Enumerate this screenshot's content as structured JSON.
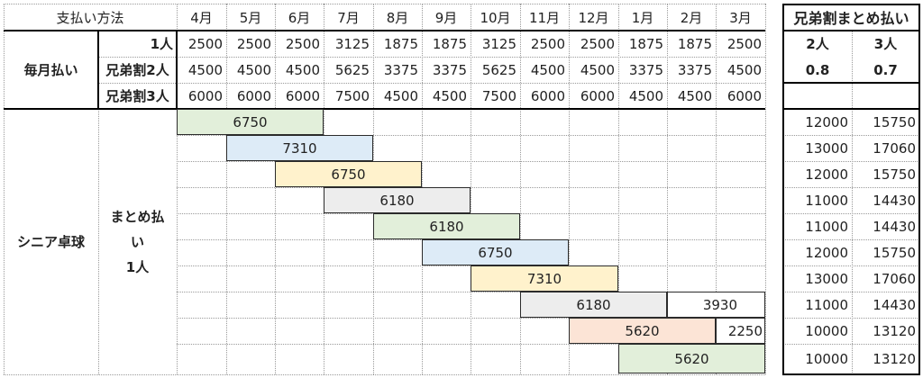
{
  "header": {
    "payment_method": "支払い方法",
    "months": [
      "4月",
      "5月",
      "6月",
      "7月",
      "8月",
      "9月",
      "10月",
      "11月",
      "12月",
      "1月",
      "2月",
      "3月"
    ],
    "bulk_title": "兄弟割まとめ払い"
  },
  "monthly": {
    "label": "毎月払い",
    "rows": [
      {
        "label": "1人",
        "values": [
          "2500",
          "2500",
          "2500",
          "3125",
          "1875",
          "1875",
          "3125",
          "2500",
          "2500",
          "1875",
          "1875",
          "2500"
        ]
      },
      {
        "label": "兄弟割2人",
        "values": [
          "4500",
          "4500",
          "4500",
          "5625",
          "3375",
          "3375",
          "5625",
          "4500",
          "4500",
          "3375",
          "3375",
          "4500"
        ]
      },
      {
        "label": "兄弟割3人",
        "values": [
          "6000",
          "6000",
          "6000",
          "7500",
          "4500",
          "4500",
          "7500",
          "6000",
          "6000",
          "4500",
          "4500",
          "6000"
        ]
      }
    ]
  },
  "bulk_info": {
    "headers": [
      "2人",
      "3人"
    ],
    "rates": [
      "0.8",
      "0.7"
    ]
  },
  "senior": {
    "label": "シニア卓球",
    "sublabel_lines": [
      "まとめ払",
      "い",
      "1人"
    ],
    "rows": [
      {
        "bar_value": "6750",
        "color": "#e2efda",
        "start_month_index": 0,
        "months_covered": 3,
        "extra_value": "",
        "bulk_2": "12000",
        "bulk_3": "15750"
      },
      {
        "bar_value": "7310",
        "color": "#ddebf7",
        "start_month_index": 1,
        "months_covered": 3,
        "extra_value": "",
        "bulk_2": "13000",
        "bulk_3": "17060"
      },
      {
        "bar_value": "6750",
        "color": "#fff2cc",
        "start_month_index": 2,
        "months_covered": 3,
        "extra_value": "",
        "bulk_2": "12000",
        "bulk_3": "15750"
      },
      {
        "bar_value": "6180",
        "color": "#ededed",
        "start_month_index": 3,
        "months_covered": 3,
        "extra_value": "",
        "bulk_2": "11000",
        "bulk_3": "14430"
      },
      {
        "bar_value": "6180",
        "color": "#e2efda",
        "start_month_index": 4,
        "months_covered": 3,
        "extra_value": "",
        "bulk_2": "11000",
        "bulk_3": "14430"
      },
      {
        "bar_value": "6750",
        "color": "#ddebf7",
        "start_month_index": 5,
        "months_covered": 3,
        "extra_value": "",
        "bulk_2": "12000",
        "bulk_3": "15750"
      },
      {
        "bar_value": "7310",
        "color": "#fff2cc",
        "start_month_index": 6,
        "months_covered": 3,
        "extra_value": "",
        "bulk_2": "13000",
        "bulk_3": "17060"
      },
      {
        "bar_value": "6180",
        "color": "#ededed",
        "start_month_index": 7,
        "months_covered": 3,
        "extra_value": "3930",
        "bulk_2": "11000",
        "bulk_3": "14430"
      },
      {
        "bar_value": "5620",
        "color": "#fce4d6",
        "start_month_index": 8,
        "months_covered": 3,
        "extra_value": "2250",
        "bulk_2": "10000",
        "bulk_3": "13120"
      },
      {
        "bar_value": "5620",
        "color": "#e2efda",
        "start_month_index": 9,
        "months_covered": 3,
        "extra_value": "",
        "bulk_2": "10000",
        "bulk_3": "13120"
      }
    ]
  }
}
